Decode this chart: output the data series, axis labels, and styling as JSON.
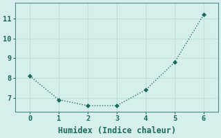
{
  "x": [
    0,
    1,
    2,
    3,
    4,
    5,
    6
  ],
  "y": [
    8.1,
    6.9,
    6.6,
    6.6,
    7.4,
    8.8,
    11.2
  ],
  "line_color": "#1a6b5a",
  "marker_color": "#1a6b5a",
  "bg_color": "#d6efec",
  "grid_color": "#c2deda",
  "spine_color": "#4a8c82",
  "xlabel": "Humidex (Indice chaleur)",
  "xlim": [
    -0.5,
    6.5
  ],
  "ylim": [
    6.3,
    11.8
  ],
  "yticks": [
    7,
    8,
    9,
    10,
    11
  ],
  "xticks": [
    0,
    1,
    2,
    3,
    4,
    5,
    6
  ],
  "font_color": "#1a6b5a",
  "font_family": "monospace",
  "tick_fontsize": 7.5,
  "xlabel_fontsize": 8.5
}
